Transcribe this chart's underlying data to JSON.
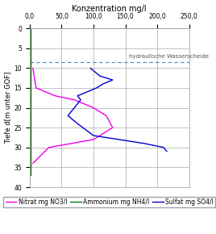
{
  "title": "Konzentration mg/l",
  "ylabel": "Tiefe d[m unter GOF]",
  "xlim": [
    0,
    250
  ],
  "ylim": [
    40,
    0
  ],
  "xticks": [
    0,
    50,
    100,
    150,
    200,
    250
  ],
  "xtick_labels": [
    "0,0",
    "50,0",
    "100,0",
    "150,0",
    "200,0",
    "250,0"
  ],
  "yticks": [
    0,
    5,
    10,
    15,
    20,
    25,
    30,
    35,
    40
  ],
  "hydraulic_line_depth": 8.5,
  "hydraulic_label": "hydraulische Wasserscheide",
  "nitrat": {
    "depths": [
      10,
      15,
      17,
      18,
      20,
      22,
      25,
      28,
      30,
      34
    ],
    "values": [
      5,
      10,
      40,
      70,
      100,
      120,
      130,
      100,
      30,
      5
    ],
    "color": "#ee00ee",
    "label": "Nitrat mg NO3/l"
  },
  "ammonium": {
    "depths": [
      0,
      10,
      15,
      20,
      25,
      30,
      34,
      37
    ],
    "values": [
      2,
      2,
      2,
      2,
      2,
      2,
      2,
      2
    ],
    "color": "#008000",
    "label": "Ammonium mg NH4/l"
  },
  "sulfat": {
    "depths": [
      10,
      12,
      13,
      14,
      15,
      17,
      18,
      20,
      22,
      24,
      27,
      29,
      30,
      31
    ],
    "values": [
      95,
      110,
      130,
      115,
      105,
      75,
      80,
      70,
      60,
      75,
      100,
      180,
      210,
      215
    ],
    "color": "#0000cc",
    "label": "Sulfat mg SO4/l"
  },
  "background_color": "#ffffff",
  "grid_color": "#aaaaaa",
  "title_fontsize": 7,
  "tick_fontsize": 5.5,
  "ylabel_fontsize": 6,
  "legend_fontsize": 5.5,
  "hydraulic_color": "#4488aa",
  "hydraulic_fontsize": 5
}
